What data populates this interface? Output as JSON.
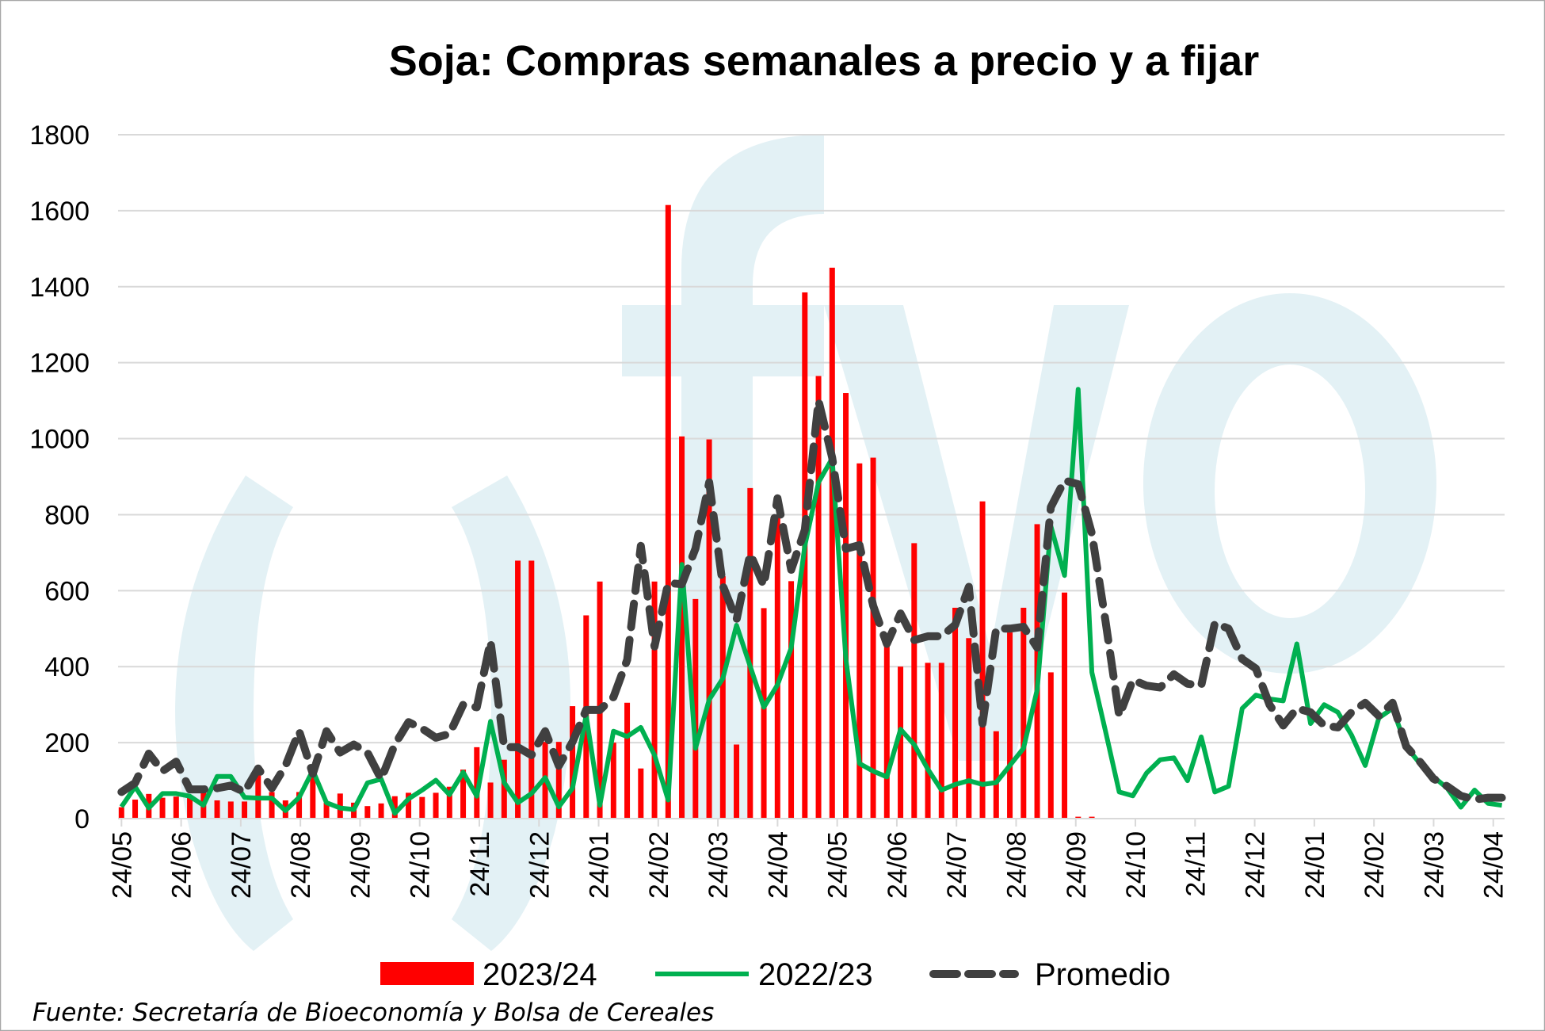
{
  "watermark": "fyo",
  "colors": {
    "bars": "#FF0000",
    "line_2022": "#00B050",
    "promedio": "#404040",
    "grid": "#D9D9D9",
    "watermark": "#E3F1F5"
  },
  "source": "Fuente: Secretaría de Bioeconomía y Bolsa de Cereales",
  "chart_data": {
    "type": "bar+line",
    "title": "Soja: Compras semanales a precio y a fijar",
    "xlabel": "",
    "ylabel": "",
    "ylim": [
      0,
      1800
    ],
    "yticks": [
      0,
      200,
      400,
      600,
      800,
      1000,
      1200,
      1400,
      1600,
      1800
    ],
    "xlim_weeks": [
      -0.25,
      101.2
    ],
    "weeks_per_month": 4.364,
    "x_tick_labels": [
      "24/05",
      "24/06",
      "24/07",
      "24/08",
      "24/09",
      "24/10",
      "24/11",
      "24/12",
      "24/01",
      "24/02",
      "24/03",
      "24/04",
      "24/05",
      "24/06",
      "24/07",
      "24/08",
      "24/09",
      "24/10",
      "24/11",
      "24/12",
      "24/01",
      "24/02",
      "24/03",
      "24/04"
    ],
    "grid": true,
    "legend_position": "bottom",
    "legend": [
      "2023/24",
      "2022/23",
      "Promedio"
    ],
    "series": [
      {
        "name": "2023/24",
        "kind": "bar",
        "values": [
          30,
          50,
          65,
          55,
          58,
          60,
          80,
          48,
          45,
          45,
          125,
          70,
          48,
          70,
          140,
          42,
          66,
          42,
          33,
          40,
          59,
          68,
          57,
          68,
          84,
          129,
          188,
          95,
          155,
          679,
          679,
          202,
          202,
          296,
          535,
          624,
          200,
          305,
          132,
          624,
          1615,
          1006,
          578,
          998,
          638,
          195,
          870,
          554,
          795,
          625,
          1385,
          1165,
          1450,
          1120,
          935,
          950,
          470,
          400,
          725,
          410,
          410,
          555,
          475,
          835,
          230,
          490,
          555,
          775,
          385,
          595,
          5,
          5
        ]
      },
      {
        "name": "2022/23",
        "kind": "line",
        "values": [
          31,
          84,
          28,
          66,
          66,
          59,
          35,
          111,
          111,
          56,
          54,
          54,
          21,
          56,
          127,
          42,
          28,
          24,
          94,
          104,
          14,
          52,
          75,
          101,
          63,
          122,
          59,
          256,
          95,
          42,
          66,
          108,
          31,
          80,
          272,
          35,
          230,
          216,
          240,
          167,
          49,
          669,
          185,
          313,
          369,
          509,
          401,
          293,
          352,
          449,
          718,
          885,
          948,
          420,
          145,
          125,
          110,
          235,
          195,
          130,
          75,
          90,
          100,
          90,
          95,
          140,
          185,
          340,
          770,
          640,
          1130,
          385,
          230,
          70,
          60,
          120,
          155,
          160,
          100,
          215,
          70,
          85,
          290,
          325,
          315,
          310,
          460,
          250,
          300,
          280,
          220,
          140,
          265,
          290,
          190,
          145,
          110,
          80,
          30,
          75,
          40,
          35
        ]
      },
      {
        "name": "Promedio",
        "kind": "dashed-line",
        "values": [
          70,
          94,
          171,
          125,
          150,
          77,
          77,
          80,
          87,
          70,
          132,
          80,
          139,
          230,
          118,
          230,
          174,
          195,
          174,
          104,
          195,
          254,
          237,
          213,
          223,
          300,
          293,
          467,
          188,
          188,
          167,
          230,
          139,
          202,
          286,
          286,
          320,
          418,
          718,
          453,
          620,
          617,
          711,
          885,
          613,
          523,
          697,
          613,
          843,
          655,
          760,
          1100,
          950,
          710,
          720,
          560,
          460,
          540,
          470,
          480,
          480,
          510,
          610,
          250,
          500,
          500,
          505,
          450,
          820,
          890,
          880,
          750,
          520,
          270,
          365,
          350,
          345,
          380,
          355,
          350,
          515,
          500,
          420,
          395,
          300,
          245,
          290,
          280,
          245,
          240,
          280,
          305,
          270,
          305,
          190,
          150,
          105,
          85,
          60,
          50,
          55,
          55
        ]
      }
    ]
  }
}
